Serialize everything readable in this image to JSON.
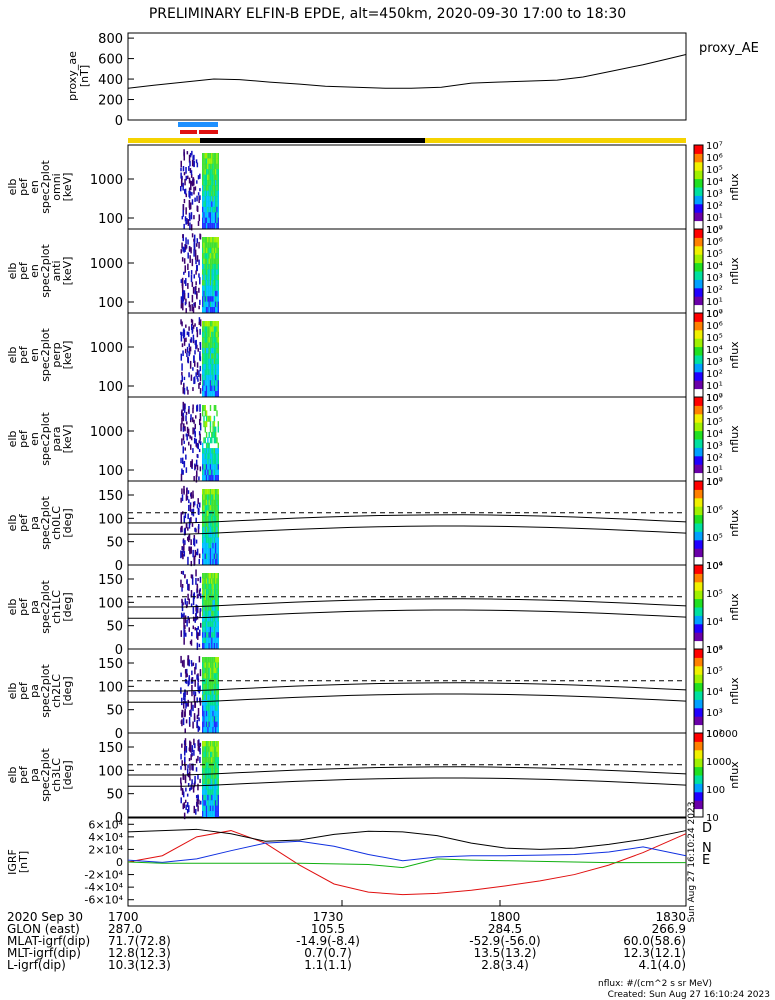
{
  "title": "PRELIMINARY ELFIN-B EPDE, alt=450km, 2020-09-30 17:00 to 18:30",
  "colors": {
    "status_yellow": "#f5d300",
    "status_black": "#000000",
    "sci_blue": "#1e90ff",
    "sci_red": "#e01010",
    "bx_red": "#e01010",
    "by_blue": "#1030e0",
    "bz_green": "#10b010"
  },
  "ae_panel": {
    "ylabel_lines": [
      "proxy_ae",
      "[nT]"
    ],
    "legend": "proxy_AE",
    "yticks": [
      "0",
      "200",
      "400",
      "600",
      "800"
    ],
    "ylim": [
      0,
      850
    ]
  },
  "spec_panels": [
    {
      "ylabel_lines": [
        "elb",
        "pef",
        "en",
        "spec2plot",
        "omni",
        "[keV]"
      ],
      "yticks": [
        "100",
        "1000"
      ],
      "cbar_ticks": [
        "10⁰",
        "10¹",
        "10²",
        "10³",
        "10⁴",
        "10⁵",
        "10⁶",
        "10⁷"
      ],
      "cbar_label": "nflux"
    },
    {
      "ylabel_lines": [
        "elb",
        "pef",
        "en",
        "spec2plot",
        "anti",
        "[keV]"
      ],
      "yticks": [
        "100",
        "1000"
      ],
      "cbar_ticks": [
        "10⁰",
        "10¹",
        "10²",
        "10³",
        "10⁴",
        "10⁵",
        "10⁶",
        "10⁷"
      ],
      "cbar_label": "nflux"
    },
    {
      "ylabel_lines": [
        "elb",
        "pef",
        "en",
        "spec2plot",
        "perp",
        "[keV]"
      ],
      "yticks": [
        "100",
        "1000"
      ],
      "cbar_ticks": [
        "10⁰",
        "10¹",
        "10²",
        "10³",
        "10⁴",
        "10⁵",
        "10⁶",
        "10⁷"
      ],
      "cbar_label": "nflux"
    },
    {
      "ylabel_lines": [
        "elb",
        "pef",
        "en",
        "spec2plot",
        "para",
        "[keV]"
      ],
      "yticks": [
        "100",
        "1000"
      ],
      "cbar_ticks": [
        "10⁰",
        "10¹",
        "10²",
        "10³",
        "10⁴",
        "10⁵",
        "10⁶",
        "10⁷"
      ],
      "cbar_label": "nflux"
    }
  ],
  "pa_panels": [
    {
      "ylabel_lines": [
        "elb",
        "pef",
        "pa",
        "spec2plot",
        "ch0LC",
        "[deg]"
      ],
      "yticks": [
        "0",
        "50",
        "100",
        "150"
      ],
      "cbar_ticks": [
        "10⁴",
        "10⁵",
        "10⁶",
        "10⁷"
      ],
      "cbar_label": "nflux"
    },
    {
      "ylabel_lines": [
        "elb",
        "pef",
        "pa",
        "spec2plot",
        "ch1LC",
        "[deg]"
      ],
      "yticks": [
        "0",
        "50",
        "100",
        "150"
      ],
      "cbar_ticks": [
        "10³",
        "10⁴",
        "10⁵",
        "10⁶"
      ],
      "cbar_label": "nflux"
    },
    {
      "ylabel_lines": [
        "elb",
        "pef",
        "pa",
        "spec2plot",
        "ch2LC",
        "[deg]"
      ],
      "yticks": [
        "0",
        "50",
        "100",
        "150"
      ],
      "cbar_ticks": [
        "10²",
        "10³",
        "10⁴",
        "10⁵",
        "10⁶"
      ],
      "cbar_label": "nflux"
    },
    {
      "ylabel_lines": [
        "elb",
        "pef",
        "pa",
        "spec2plot",
        "ch3LC",
        "[deg]"
      ],
      "yticks": [
        "0",
        "50",
        "100",
        "150"
      ],
      "cbar_ticks": [
        "10",
        "100",
        "1000",
        "10000"
      ],
      "cbar_label": "nflux"
    }
  ],
  "igrf_panel": {
    "ylabel_lines": [
      "IGRF",
      "[nT]"
    ],
    "yticks": [
      "-6×10⁴",
      "-4×10⁴",
      "-2×10⁴",
      "0",
      "2×10⁴",
      "4×10⁴",
      "6×10⁴"
    ],
    "legend": [
      "D",
      "N",
      "E"
    ],
    "side_text": "Sun Aug 27 16:10:24 2023"
  },
  "footer": {
    "rows": [
      {
        "label": "2020 Sep 30",
        "values": [
          "1700",
          "1730",
          "1800",
          "1830"
        ]
      },
      {
        "label": "GLON (east)",
        "values": [
          "287.0",
          "105.5",
          "284.5",
          "266.9"
        ]
      },
      {
        "label": "MLAT-igrf(dip)",
        "values": [
          "71.7(72.8)",
          "-14.9(-8.4)",
          "-52.9(-56.0)",
          "60.0(58.6)"
        ]
      },
      {
        "label": "MLT-igrf(dip)",
        "values": [
          "12.8(12.3)",
          "0.7(0.7)",
          "13.5(13.2)",
          "12.3(12.1)"
        ]
      },
      {
        "label": "L-igrf(dip)",
        "values": [
          "10.3(12.3)",
          "1.1(1.1)",
          "2.8(3.4)",
          "4.1(4.0)"
        ]
      }
    ],
    "units_note": "nflux: #/(cm^2 s sr MeV)",
    "created": "Created: Sun Aug 27 16:10:24 2023"
  },
  "chart_data": {
    "type": "line",
    "x_unit": "UT (HHMM)",
    "x_range": [
      1700,
      1830
    ],
    "series": [
      {
        "name": "proxy_AE",
        "x": [
          1700,
          1706,
          1713,
          1720,
          1726,
          1733,
          1740,
          1746,
          1753,
          1760,
          1766,
          1773,
          1780,
          1786,
          1793,
          1800,
          1806,
          1813,
          1820,
          1826,
          1830
        ],
        "y": [
          310,
          340,
          370,
          400,
          395,
          370,
          350,
          330,
          320,
          310,
          310,
          320,
          360,
          370,
          380,
          390,
          420,
          480,
          540,
          600,
          640
        ]
      },
      {
        "name": "D",
        "x": [
          1700,
          1708,
          1716,
          1724,
          1732,
          1740,
          1748,
          1756,
          1764,
          1772,
          1780,
          1788,
          1796,
          1804,
          1812,
          1820,
          1830
        ],
        "y": [
          0,
          10000,
          40000,
          50000,
          30000,
          -5000,
          -35000,
          -48000,
          -52000,
          -50000,
          -45000,
          -38000,
          -30000,
          -20000,
          -5000,
          15000,
          45000
        ]
      },
      {
        "name": "N",
        "x": [
          1700,
          1708,
          1716,
          1724,
          1732,
          1740,
          1748,
          1756,
          1764,
          1772,
          1780,
          1788,
          1796,
          1804,
          1812,
          1820,
          1830
        ],
        "y": [
          3000,
          -500,
          5000,
          18000,
          30000,
          33000,
          25000,
          12000,
          2000,
          8000,
          10000,
          10000,
          11000,
          12000,
          16000,
          24000,
          10000
        ]
      },
      {
        "name": "E",
        "x": [
          1700,
          1708,
          1716,
          1724,
          1732,
          1740,
          1748,
          1756,
          1764,
          1772,
          1780,
          1788,
          1796,
          1804,
          1812,
          1820,
          1830
        ],
        "y": [
          0,
          -2000,
          -2000,
          -2000,
          -2000,
          -2000,
          -3000,
          -4000,
          -9000,
          5000,
          3000,
          2000,
          1000,
          0,
          -1000,
          -1000,
          -1000
        ]
      },
      {
        "name": "total",
        "x": [
          1700,
          1708,
          1716,
          1724,
          1732,
          1740,
          1748,
          1756,
          1764,
          1772,
          1780,
          1788,
          1796,
          1804,
          1812,
          1820,
          1830
        ],
        "y": [
          48000,
          50000,
          52000,
          45000,
          33000,
          35000,
          44000,
          49000,
          48000,
          42000,
          30000,
          22000,
          20000,
          22000,
          28000,
          36000,
          50000
        ]
      }
    ],
    "pitch_angle_lines_deg": {
      "solid": [
        68,
        90
      ],
      "dashed": [
        112
      ]
    }
  }
}
